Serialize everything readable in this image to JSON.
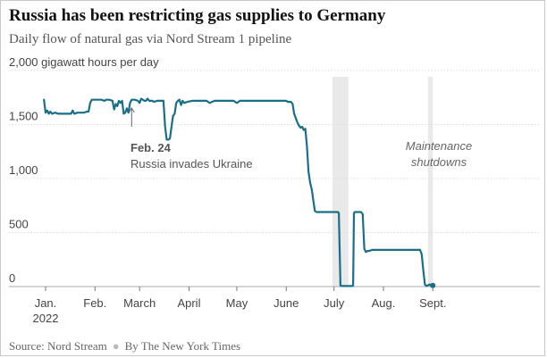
{
  "title": "Russia has been restricting gas supplies to Germany",
  "subtitle": "Daily flow of natural gas via Nord Stream 1 pipeline",
  "footer": {
    "source": "Source: Nord Stream",
    "credit": "By The New York Times"
  },
  "colors": {
    "line": "#1a6f88",
    "grid": "#dddddd",
    "band": "#e9e9e9",
    "axis": "#777777",
    "text": "#444444"
  },
  "chart_data": {
    "type": "line",
    "title": "Russia has been restricting gas supplies to Germany",
    "subtitle": "Daily flow of natural gas via Nord Stream 1 pipeline",
    "ylabel": "gigawatt hours per day",
    "ylim": [
      0,
      2000
    ],
    "yticks": [
      0,
      500,
      1000,
      1500,
      2000
    ],
    "ytick_labels": [
      "0",
      "500",
      "1,000",
      "1,500",
      "2,000 gigawatt hours per day"
    ],
    "xlim_days": [
      -3,
      243
    ],
    "xticks": [
      {
        "day": 0,
        "label": "Jan.",
        "sublabel": "2022"
      },
      {
        "day": 31,
        "label": "Feb."
      },
      {
        "day": 59,
        "label": "March"
      },
      {
        "day": 90,
        "label": "April"
      },
      {
        "day": 120,
        "label": "May"
      },
      {
        "day": 151,
        "label": "June"
      },
      {
        "day": 181,
        "label": "July"
      },
      {
        "day": 212,
        "label": "Aug."
      },
      {
        "day": 243,
        "label": "Sept."
      }
    ],
    "grid": true,
    "shaded_periods": [
      {
        "start": 180,
        "end": 190
      },
      {
        "start": 240,
        "end": 243
      }
    ],
    "annotations": [
      {
        "day": 54,
        "value": 1620,
        "bold": "Feb. 24",
        "text": "Russia invades Ukraine"
      },
      {
        "day": 210,
        "value": 1350,
        "lines": [
          "Maintenance",
          "shutdowns"
        ]
      }
    ],
    "series": [
      {
        "name": "Nord Stream 1 daily flow",
        "points": [
          [
            -1,
            1730
          ],
          [
            0,
            1610
          ],
          [
            1,
            1630
          ],
          [
            2,
            1600
          ],
          [
            3,
            1620
          ],
          [
            4,
            1600
          ],
          [
            6,
            1610
          ],
          [
            8,
            1600
          ],
          [
            10,
            1600
          ],
          [
            12,
            1600
          ],
          [
            14,
            1600
          ],
          [
            16,
            1600
          ],
          [
            17,
            1630
          ],
          [
            18,
            1600
          ],
          [
            20,
            1610
          ],
          [
            22,
            1610
          ],
          [
            24,
            1610
          ],
          [
            26,
            1620
          ],
          [
            27,
            1620
          ],
          [
            28,
            1700
          ],
          [
            29,
            1730
          ],
          [
            31,
            1730
          ],
          [
            33,
            1730
          ],
          [
            35,
            1730
          ],
          [
            37,
            1720
          ],
          [
            38,
            1730
          ],
          [
            40,
            1730
          ],
          [
            42,
            1720
          ],
          [
            43,
            1640
          ],
          [
            44,
            1690
          ],
          [
            45,
            1670
          ],
          [
            46,
            1720
          ],
          [
            47,
            1700
          ],
          [
            48,
            1720
          ],
          [
            49,
            1600
          ],
          [
            50,
            1610
          ],
          [
            51,
            1650
          ],
          [
            52,
            1610
          ],
          [
            53,
            1700
          ],
          [
            54,
            1730
          ],
          [
            56,
            1730
          ],
          [
            58,
            1720
          ],
          [
            59,
            1700
          ],
          [
            60,
            1740
          ],
          [
            61,
            1730
          ],
          [
            62,
            1720
          ],
          [
            63,
            1720
          ],
          [
            64,
            1740
          ],
          [
            65,
            1720
          ],
          [
            66,
            1720
          ],
          [
            67,
            1720
          ],
          [
            68,
            1710
          ],
          [
            70,
            1720
          ],
          [
            72,
            1720
          ],
          [
            74,
            1720
          ],
          [
            75,
            1480
          ],
          [
            76,
            1360
          ],
          [
            77,
            1360
          ],
          [
            78,
            1370
          ],
          [
            79,
            1480
          ],
          [
            80,
            1580
          ],
          [
            81,
            1600
          ],
          [
            82,
            1700
          ],
          [
            83,
            1720
          ],
          [
            84,
            1730
          ],
          [
            85,
            1680
          ],
          [
            86,
            1720
          ],
          [
            87,
            1700
          ],
          [
            89,
            1710
          ],
          [
            92,
            1720
          ],
          [
            95,
            1720
          ],
          [
            98,
            1720
          ],
          [
            101,
            1720
          ],
          [
            103,
            1700
          ],
          [
            106,
            1720
          ],
          [
            110,
            1720
          ],
          [
            114,
            1720
          ],
          [
            118,
            1720
          ],
          [
            120,
            1700
          ],
          [
            122,
            1720
          ],
          [
            125,
            1720
          ],
          [
            130,
            1720
          ],
          [
            135,
            1720
          ],
          [
            140,
            1720
          ],
          [
            145,
            1720
          ],
          [
            148,
            1720
          ],
          [
            150,
            1720
          ],
          [
            151,
            1720
          ],
          [
            152,
            1710
          ],
          [
            154,
            1710
          ],
          [
            155,
            1690
          ],
          [
            156,
            1600
          ],
          [
            157,
            1560
          ],
          [
            158,
            1520
          ],
          [
            159,
            1490
          ],
          [
            160,
            1470
          ],
          [
            161,
            1480
          ],
          [
            162,
            1450
          ],
          [
            163,
            1460
          ],
          [
            164,
            1300
          ],
          [
            165,
            1060
          ],
          [
            166,
            960
          ],
          [
            167,
            900
          ],
          [
            168,
            800
          ],
          [
            169,
            700
          ],
          [
            170,
            690
          ],
          [
            172,
            690
          ],
          [
            175,
            690
          ],
          [
            178,
            690
          ],
          [
            180,
            690
          ],
          [
            182,
            690
          ],
          [
            183,
            690
          ],
          [
            183.5,
            690
          ],
          [
            184,
            680
          ],
          [
            185,
            10
          ],
          [
            186,
            5
          ],
          [
            188,
            5
          ],
          [
            190,
            5
          ],
          [
            192,
            5
          ],
          [
            193,
            10
          ],
          [
            193.5,
            680
          ],
          [
            194,
            690
          ],
          [
            196,
            690
          ],
          [
            198,
            690
          ],
          [
            199,
            670
          ],
          [
            200,
            350
          ],
          [
            201,
            320
          ],
          [
            202,
            330
          ],
          [
            203,
            330
          ],
          [
            205,
            340
          ],
          [
            208,
            340
          ],
          [
            212,
            340
          ],
          [
            216,
            340
          ],
          [
            220,
            340
          ],
          [
            224,
            340
          ],
          [
            228,
            340
          ],
          [
            232,
            340
          ],
          [
            235,
            340
          ],
          [
            236,
            300
          ],
          [
            237,
            150
          ],
          [
            238,
            20
          ],
          [
            239,
            5
          ],
          [
            241,
            20
          ],
          [
            242,
            5
          ],
          [
            243,
            10
          ]
        ]
      }
    ]
  }
}
